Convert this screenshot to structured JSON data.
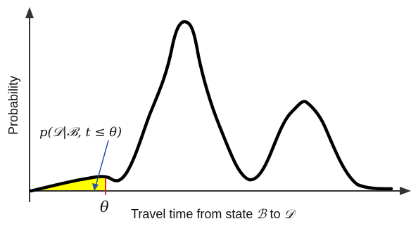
{
  "axes": {
    "y_label": "Probability",
    "x_label_prefix": "Travel time from state ",
    "x_label_from": "ℬ",
    "x_label_middle": " to ",
    "x_label_to": "𝒟"
  },
  "threshold": {
    "symbol": "θ",
    "line_color": "#e8202a"
  },
  "annotation": {
    "text": "p(𝒟|ℬ, t ≤ θ)",
    "fill_color": "#ffff00",
    "arrow_color": "#2a4fa8"
  },
  "colors": {
    "curve": "#000000",
    "axes": "#333333"
  }
}
